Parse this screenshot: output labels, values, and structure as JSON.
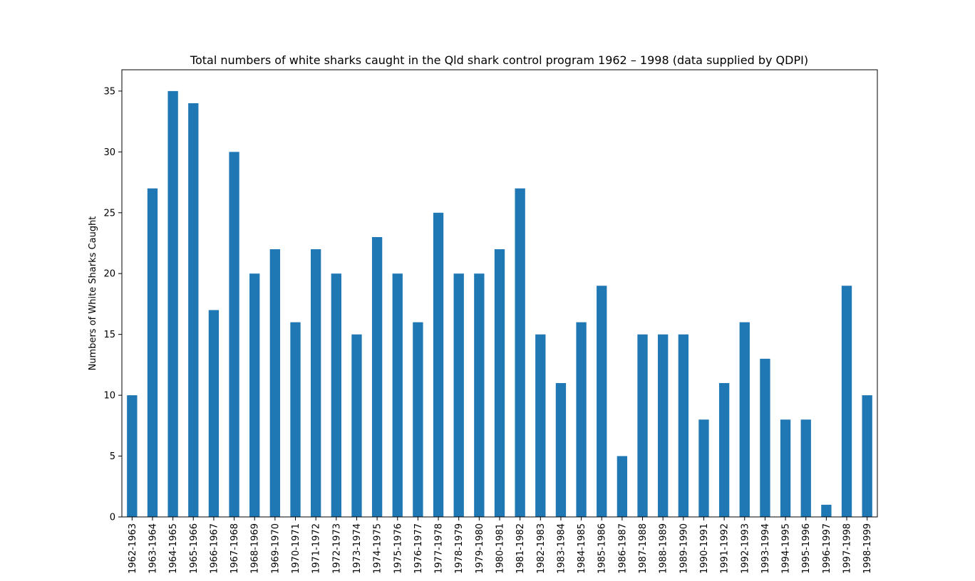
{
  "chart_data": {
    "type": "bar",
    "title": "Total numbers of white sharks caught in the Qld shark control program 1962 – 1998 (data supplied by QDPI)",
    "xlabel": "",
    "ylabel": "Numbers of White Sharks Caught",
    "ylim": [
      0,
      36.75
    ],
    "yticks": [
      0,
      5,
      10,
      15,
      20,
      25,
      30,
      35
    ],
    "grid": false,
    "legend": "none",
    "bar_color": "#1f77b4",
    "categories": [
      "1962-1963",
      "1963-1964",
      "1964-1965",
      "1965-1966",
      "1966-1967",
      "1967-1968",
      "1968-1969",
      "1969-1970",
      "1970-1971",
      "1971-1972",
      "1972-1973",
      "1973-1974",
      "1974-1975",
      "1975-1976",
      "1976-1977",
      "1977-1978",
      "1978-1979",
      "1979-1980",
      "1980-1981",
      "1981-1982",
      "1982-1983",
      "1983-1984",
      "1984-1985",
      "1985-1986",
      "1986-1987",
      "1987-1988",
      "1988-1989",
      "1989-1990",
      "1990-1991",
      "1991-1992",
      "1992-1993",
      "1993-1994",
      "1994-1995",
      "1995-1996",
      "1996-1997",
      "1997-1998",
      "1998-1999"
    ],
    "values": [
      10,
      27,
      35,
      34,
      17,
      30,
      20,
      22,
      16,
      22,
      20,
      15,
      23,
      20,
      16,
      25,
      20,
      20,
      22,
      27,
      15,
      11,
      16,
      19,
      5,
      15,
      15,
      15,
      8,
      11,
      16,
      13,
      8,
      8,
      1,
      19,
      10
    ]
  }
}
